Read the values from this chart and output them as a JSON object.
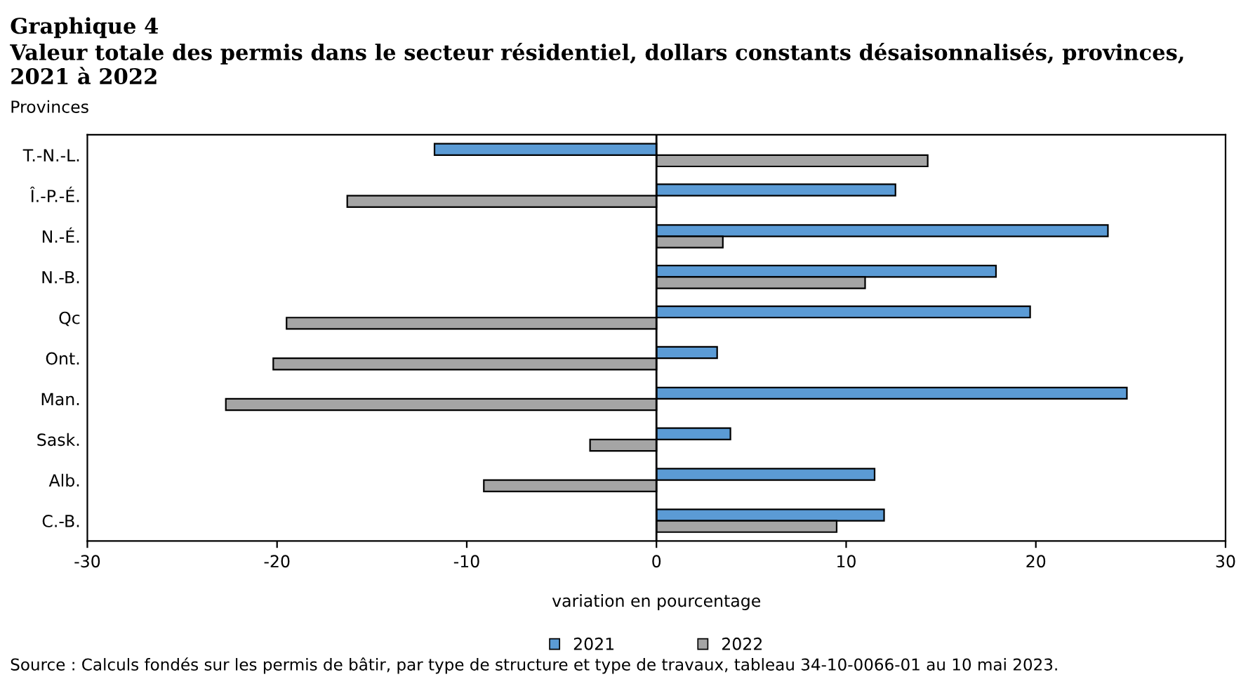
{
  "chart_data": {
    "type": "bar",
    "orientation": "horizontal",
    "title": "Graphique 4",
    "subtitle": "Valeur totale des permis dans le secteur résidentiel, dollars constants désaisonnalisés, provinces, 2021 à 2022",
    "ylabel": "Provinces",
    "xlabel": "variation en pourcentage",
    "categories": [
      "T.-N.-L.",
      "Î.-P.-É.",
      "N.-É.",
      "N.-B.",
      "Qc",
      "Ont.",
      "Man.",
      "Sask.",
      "Alb.",
      "C.-B."
    ],
    "series": [
      {
        "name": "2021",
        "color": "#5b9bd5",
        "values": [
          -11.7,
          12.6,
          23.8,
          17.9,
          19.7,
          3.2,
          24.8,
          3.9,
          11.5,
          12.0
        ]
      },
      {
        "name": "2022",
        "color": "#a5a5a5",
        "values": [
          14.3,
          -16.3,
          3.5,
          11.0,
          -19.5,
          -20.2,
          -22.7,
          -3.5,
          -9.1,
          9.5
        ]
      }
    ],
    "xlim": [
      -30,
      30
    ],
    "xticks": [
      -30,
      -20,
      -10,
      0,
      10,
      20,
      30
    ],
    "ref_lines": [
      {
        "axis": "x",
        "value": 0,
        "color": "#000000"
      }
    ],
    "grid": false,
    "legend": "bottom",
    "annotations": [
      "Source : Calculs fondés sur les permis de bâtir, par type de structure et type de travaux, tableau 34-10-0066-01 au 10 mai 2023."
    ]
  }
}
